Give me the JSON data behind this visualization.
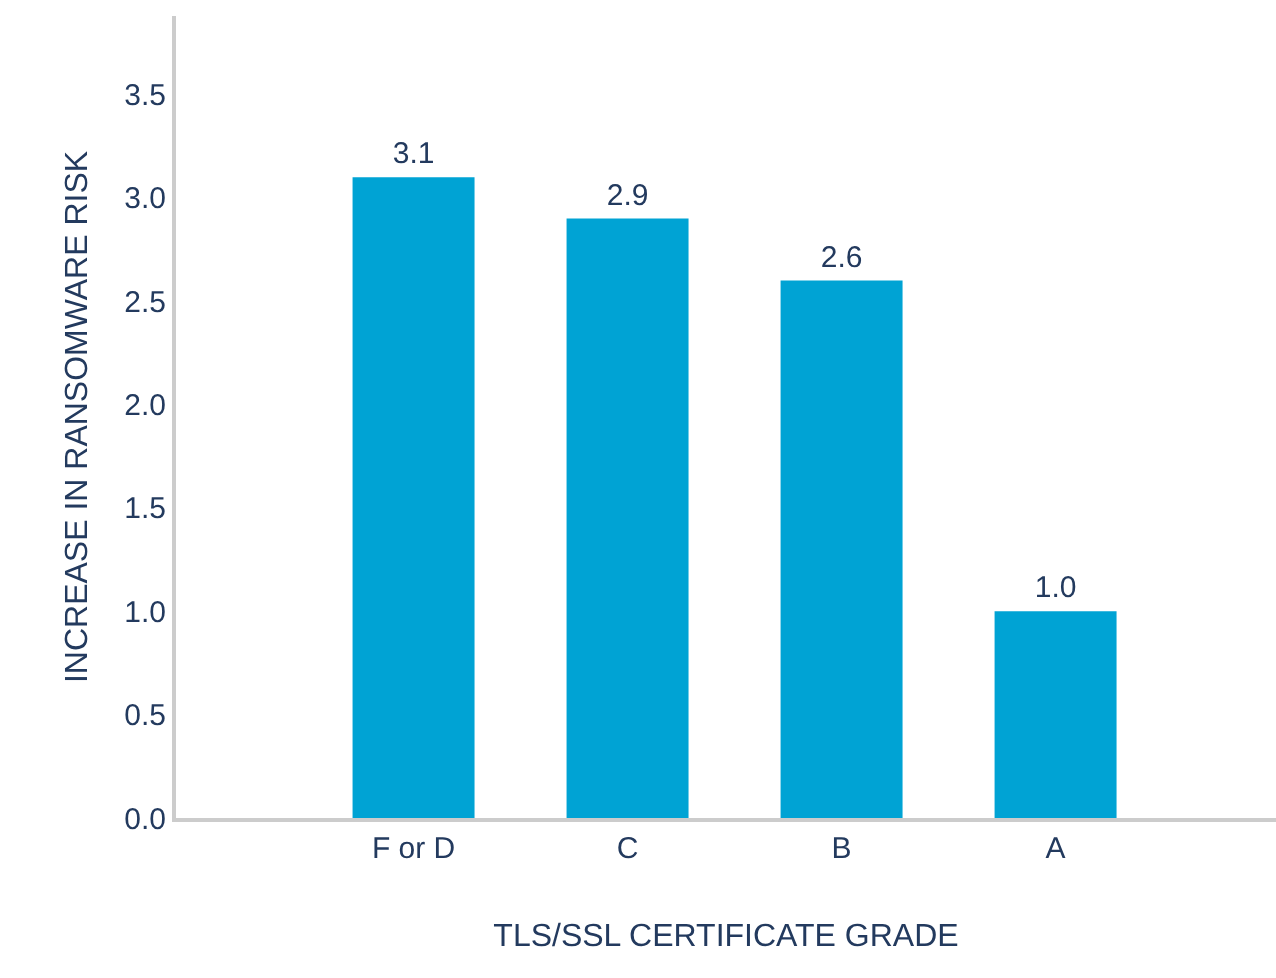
{
  "chart_data": {
    "type": "bar",
    "xlabel": "TLS/SSL CERTIFICATE GRADE",
    "ylabel": "INCREASE IN RANSOMWARE RISK",
    "categories": [
      "F or D",
      "C",
      "B",
      "A"
    ],
    "values": [
      3.1,
      2.9,
      2.6,
      1.0
    ],
    "value_labels": [
      "3.1",
      "2.9",
      "2.6",
      "1.0"
    ],
    "color": "#00a3d4",
    "ylim": [
      0,
      3.88
    ],
    "yticks": [
      {
        "value": 0,
        "label": "0.0"
      },
      {
        "value": 0.5,
        "label": "0.5"
      },
      {
        "value": 1,
        "label": "1.0"
      },
      {
        "value": 1.5,
        "label": "1.5"
      },
      {
        "value": 2,
        "label": "2.0"
      },
      {
        "value": 2.5,
        "label": "2.5"
      },
      {
        "value": 3,
        "label": "3.0"
      },
      {
        "value": 3.5,
        "label": "3.5"
      }
    ],
    "tick_labels": "xy"
  }
}
